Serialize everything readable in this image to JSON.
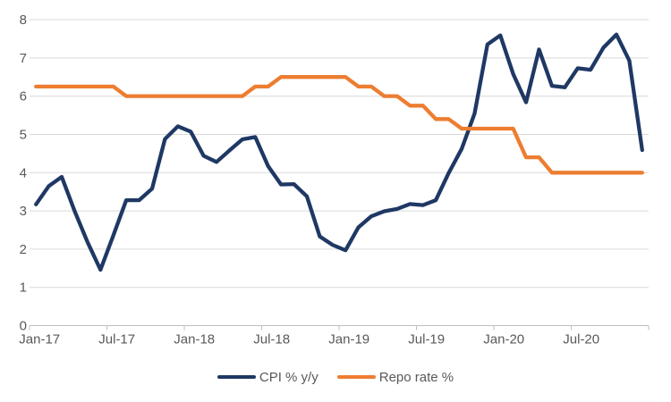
{
  "chart_data": {
    "type": "line",
    "title": "",
    "xlabel": "",
    "ylabel": "",
    "ylim": [
      0,
      8
    ],
    "y_ticks": [
      0,
      1,
      2,
      3,
      4,
      5,
      6,
      7,
      8
    ],
    "grid": "horizontal",
    "legend_position": "bottom",
    "x": [
      "Jan-17",
      "Feb-17",
      "Mar-17",
      "Apr-17",
      "May-17",
      "Jun-17",
      "Jul-17",
      "Aug-17",
      "Sep-17",
      "Oct-17",
      "Nov-17",
      "Dec-17",
      "Jan-18",
      "Feb-18",
      "Mar-18",
      "Apr-18",
      "May-18",
      "Jun-18",
      "Jul-18",
      "Aug-18",
      "Sep-18",
      "Oct-18",
      "Nov-18",
      "Dec-18",
      "Jan-19",
      "Feb-19",
      "Mar-19",
      "Apr-19",
      "May-19",
      "Jun-19",
      "Jul-19",
      "Aug-19",
      "Sep-19",
      "Oct-19",
      "Nov-19",
      "Dec-19",
      "Jan-20",
      "Feb-20",
      "Mar-20",
      "Apr-20",
      "May-20",
      "Jun-20",
      "Jul-20",
      "Aug-20",
      "Sep-20",
      "Oct-20",
      "Nov-20",
      "Dec-20"
    ],
    "x_tick_labels": [
      "Jan-17",
      "Jul-17",
      "Jan-18",
      "Jul-18",
      "Jan-19",
      "Jul-19",
      "Jan-20",
      "Jul-20"
    ],
    "series": [
      {
        "name": "CPI % y/y",
        "color": "#1F3864",
        "values": [
          3.17,
          3.65,
          3.89,
          2.99,
          2.18,
          1.46,
          2.36,
          3.28,
          3.28,
          3.58,
          4.88,
          5.21,
          5.07,
          4.44,
          4.28,
          4.58,
          4.87,
          4.93,
          4.17,
          3.69,
          3.7,
          3.38,
          2.33,
          2.11,
          1.97,
          2.57,
          2.86,
          2.99,
          3.05,
          3.18,
          3.15,
          3.28,
          3.99,
          4.62,
          5.54,
          7.35,
          7.59,
          6.58,
          5.84,
          7.22,
          6.27,
          6.23,
          6.73,
          6.69,
          7.27,
          7.61,
          6.93,
          4.59
        ]
      },
      {
        "name": "Repo rate %",
        "color": "#ED7D31",
        "values": [
          6.25,
          6.25,
          6.25,
          6.25,
          6.25,
          6.25,
          6.25,
          6.0,
          6.0,
          6.0,
          6.0,
          6.0,
          6.0,
          6.0,
          6.0,
          6.0,
          6.0,
          6.25,
          6.25,
          6.5,
          6.5,
          6.5,
          6.5,
          6.5,
          6.5,
          6.25,
          6.25,
          6.0,
          6.0,
          5.75,
          5.75,
          5.4,
          5.4,
          5.15,
          5.15,
          5.15,
          5.15,
          5.15,
          4.4,
          4.4,
          4.0,
          4.0,
          4.0,
          4.0,
          4.0,
          4.0,
          4.0,
          4.0
        ]
      }
    ]
  },
  "colors": {
    "gridline": "#D9D9D9",
    "axis": "#BFBFBF",
    "axis_text": "#595959",
    "background": "#FFFFFF"
  }
}
